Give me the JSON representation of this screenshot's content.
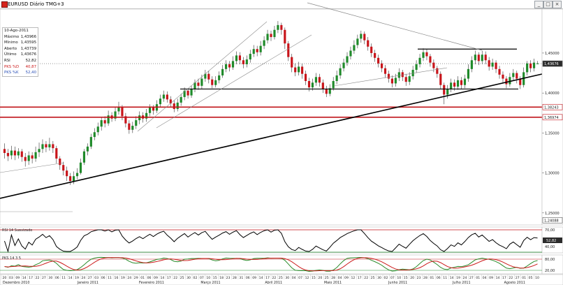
{
  "window": {
    "title": "EURUSD Diário TMG+3",
    "buttons": [
      "_",
      "□",
      "×"
    ]
  },
  "info": {
    "date": "10-Ago-2011",
    "rows": [
      {
        "label": "Máximo",
        "value": "1,43966",
        "color": "#111111"
      },
      {
        "label": "Mínimo",
        "value": "1,43595",
        "color": "#111111"
      },
      {
        "label": "Aberto",
        "value": "1,43739",
        "color": "#111111"
      },
      {
        "label": "Último",
        "value": "1,43676",
        "color": "#111111"
      },
      {
        "label": "RSI",
        "value": "52,82",
        "color": "#111111"
      },
      {
        "label": "PKS %D",
        "value": "40,87",
        "color": "#cc1b1b"
      },
      {
        "label": "PKS %K",
        "value": "52,40",
        "color": "#2a4fb5"
      }
    ]
  },
  "price_panel": {
    "axis_labels": [
      "1,45000",
      "1,40000",
      "1,35000",
      "1,30000",
      "1,25000"
    ],
    "badges": [
      {
        "text": "1,43676",
        "price": 1.43676,
        "style": "dark"
      },
      {
        "text": "1,38243",
        "price": 1.38243,
        "style": "red"
      },
      {
        "text": "1,36974",
        "price": 1.36974,
        "style": "red"
      },
      {
        "text": "1,24088",
        "price": 1.24088,
        "style": "plain"
      }
    ],
    "last_price": 1.43676,
    "resistance_line": 1.455,
    "neckline": 1.405,
    "support_zone_top": 1.38243,
    "support_zone_bottom": 1.36974
  },
  "rsi_panel": {
    "label": "RSI 14 Suavizado",
    "axis_labels": [
      "70,00",
      "40,00"
    ],
    "badge": "52,82"
  },
  "pks_panel": {
    "label": "PKS 14 3 5",
    "axis_labels": [
      "80,00",
      "20,00"
    ],
    "k_color": "#2a8a2a",
    "d_color": "#cc1b1b"
  },
  "timeline": {
    "day_labels": [
      "20",
      "03",
      "09",
      "14",
      "17",
      "22",
      "27",
      "30",
      "06",
      "11",
      "14",
      "19",
      "24",
      "27",
      "03",
      "06",
      "11",
      "16",
      "19",
      "24",
      "29",
      "01",
      "06",
      "09",
      "14",
      "17",
      "22",
      "25",
      "30",
      "02",
      "07",
      "10",
      "15",
      "18",
      "23",
      "28",
      "31",
      "06",
      "09",
      "14",
      "17",
      "22",
      "25",
      "30",
      "04",
      "07",
      "12",
      "15",
      "20",
      "25",
      "28",
      "04",
      "09",
      "12",
      "17",
      "22",
      "25",
      "30",
      "02",
      "07",
      "10",
      "15",
      "20",
      "23",
      "28",
      "01",
      "06",
      "11",
      "14",
      "19",
      "24",
      "27",
      "01",
      "04",
      "09",
      "14",
      "17",
      "22",
      "27",
      "01",
      "05",
      "10"
    ],
    "month_labels": [
      {
        "text": "Dezembro 2010",
        "pos": 0.0
      },
      {
        "text": "Janeiro 2011",
        "pos": 0.145
      },
      {
        "text": "Fevereiro 2011",
        "pos": 0.265
      },
      {
        "text": "Março 2011",
        "pos": 0.385
      },
      {
        "text": "Abril 2011",
        "pos": 0.51
      },
      {
        "text": "Maio 2011",
        "pos": 0.625
      },
      {
        "text": "Junho 2011",
        "pos": 0.75
      },
      {
        "text": "Julho 2011",
        "pos": 0.875
      },
      {
        "text": "Agosto 2011",
        "pos": 0.975
      }
    ]
  },
  "chart_data": {
    "type": "candlestick",
    "title": "EURUSD Diário TMG+3",
    "ylim": [
      1.235,
      1.505
    ],
    "y_ticks": [
      1.25,
      1.3,
      1.35,
      1.4,
      1.45
    ],
    "candles": [
      {
        "o": 1.33,
        "c": 1.325,
        "h": 1.337,
        "l": 1.318
      },
      {
        "o": 1.325,
        "c": 1.321,
        "h": 1.33,
        "l": 1.315
      },
      {
        "o": 1.322,
        "c": 1.328,
        "h": 1.334,
        "l": 1.317
      },
      {
        "o": 1.328,
        "c": 1.322,
        "h": 1.333,
        "l": 1.316
      },
      {
        "o": 1.322,
        "c": 1.327,
        "h": 1.331,
        "l": 1.318
      },
      {
        "o": 1.327,
        "c": 1.32,
        "h": 1.33,
        "l": 1.314
      },
      {
        "o": 1.32,
        "c": 1.315,
        "h": 1.325,
        "l": 1.308
      },
      {
        "o": 1.315,
        "c": 1.322,
        "h": 1.327,
        "l": 1.31
      },
      {
        "o": 1.322,
        "c": 1.318,
        "h": 1.326,
        "l": 1.312
      },
      {
        "o": 1.318,
        "c": 1.326,
        "h": 1.333,
        "l": 1.314
      },
      {
        "o": 1.326,
        "c": 1.33,
        "h": 1.338,
        "l": 1.32
      },
      {
        "o": 1.33,
        "c": 1.336,
        "h": 1.342,
        "l": 1.325
      },
      {
        "o": 1.336,
        "c": 1.332,
        "h": 1.34,
        "l": 1.326
      },
      {
        "o": 1.332,
        "c": 1.336,
        "h": 1.344,
        "l": 1.328
      },
      {
        "o": 1.336,
        "c": 1.331,
        "h": 1.34,
        "l": 1.325
      },
      {
        "o": 1.331,
        "c": 1.318,
        "h": 1.334,
        "l": 1.312
      },
      {
        "o": 1.318,
        "c": 1.31,
        "h": 1.321,
        "l": 1.304
      },
      {
        "o": 1.31,
        "c": 1.303,
        "h": 1.314,
        "l": 1.297
      },
      {
        "o": 1.303,
        "c": 1.296,
        "h": 1.308,
        "l": 1.29
      },
      {
        "o": 1.296,
        "c": 1.29,
        "h": 1.3,
        "l": 1.285
      },
      {
        "o": 1.29,
        "c": 1.296,
        "h": 1.302,
        "l": 1.286
      },
      {
        "o": 1.296,
        "c": 1.3,
        "h": 1.306,
        "l": 1.292
      },
      {
        "o": 1.3,
        "c": 1.313,
        "h": 1.318,
        "l": 1.298
      },
      {
        "o": 1.313,
        "c": 1.327,
        "h": 1.33,
        "l": 1.31
      },
      {
        "o": 1.327,
        "c": 1.333,
        "h": 1.337,
        "l": 1.322
      },
      {
        "o": 1.333,
        "c": 1.345,
        "h": 1.349,
        "l": 1.33
      },
      {
        "o": 1.345,
        "c": 1.351,
        "h": 1.356,
        "l": 1.341
      },
      {
        "o": 1.351,
        "c": 1.358,
        "h": 1.363,
        "l": 1.347
      },
      {
        "o": 1.358,
        "c": 1.366,
        "h": 1.37,
        "l": 1.353
      },
      {
        "o": 1.366,
        "c": 1.362,
        "h": 1.371,
        "l": 1.357
      },
      {
        "o": 1.362,
        "c": 1.372,
        "h": 1.378,
        "l": 1.359
      },
      {
        "o": 1.372,
        "c": 1.368,
        "h": 1.376,
        "l": 1.364
      },
      {
        "o": 1.368,
        "c": 1.377,
        "h": 1.383,
        "l": 1.365
      },
      {
        "o": 1.377,
        "c": 1.383,
        "h": 1.389,
        "l": 1.373
      },
      {
        "o": 1.383,
        "c": 1.371,
        "h": 1.385,
        "l": 1.366
      },
      {
        "o": 1.371,
        "c": 1.362,
        "h": 1.375,
        "l": 1.357
      },
      {
        "o": 1.362,
        "c": 1.354,
        "h": 1.366,
        "l": 1.349
      },
      {
        "o": 1.354,
        "c": 1.359,
        "h": 1.364,
        "l": 1.35
      },
      {
        "o": 1.359,
        "c": 1.366,
        "h": 1.371,
        "l": 1.355
      },
      {
        "o": 1.366,
        "c": 1.372,
        "h": 1.377,
        "l": 1.361
      },
      {
        "o": 1.372,
        "c": 1.368,
        "h": 1.376,
        "l": 1.363
      },
      {
        "o": 1.368,
        "c": 1.375,
        "h": 1.38,
        "l": 1.364
      },
      {
        "o": 1.375,
        "c": 1.382,
        "h": 1.386,
        "l": 1.371
      },
      {
        "o": 1.382,
        "c": 1.378,
        "h": 1.385,
        "l": 1.373
      },
      {
        "o": 1.378,
        "c": 1.386,
        "h": 1.391,
        "l": 1.375
      },
      {
        "o": 1.386,
        "c": 1.393,
        "h": 1.398,
        "l": 1.382
      },
      {
        "o": 1.393,
        "c": 1.398,
        "h": 1.403,
        "l": 1.389
      },
      {
        "o": 1.398,
        "c": 1.392,
        "h": 1.402,
        "l": 1.388
      },
      {
        "o": 1.392,
        "c": 1.387,
        "h": 1.396,
        "l": 1.383
      },
      {
        "o": 1.387,
        "c": 1.38,
        "h": 1.391,
        "l": 1.376
      },
      {
        "o": 1.38,
        "c": 1.388,
        "h": 1.393,
        "l": 1.377
      },
      {
        "o": 1.388,
        "c": 1.395,
        "h": 1.399,
        "l": 1.384
      },
      {
        "o": 1.395,
        "c": 1.403,
        "h": 1.407,
        "l": 1.391
      },
      {
        "o": 1.403,
        "c": 1.397,
        "h": 1.406,
        "l": 1.393
      },
      {
        "o": 1.397,
        "c": 1.405,
        "h": 1.409,
        "l": 1.394
      },
      {
        "o": 1.405,
        "c": 1.413,
        "h": 1.417,
        "l": 1.401
      },
      {
        "o": 1.413,
        "c": 1.409,
        "h": 1.418,
        "l": 1.404
      },
      {
        "o": 1.409,
        "c": 1.418,
        "h": 1.423,
        "l": 1.405
      },
      {
        "o": 1.418,
        "c": 1.424,
        "h": 1.429,
        "l": 1.414
      },
      {
        "o": 1.424,
        "c": 1.417,
        "h": 1.428,
        "l": 1.412
      },
      {
        "o": 1.417,
        "c": 1.41,
        "h": 1.421,
        "l": 1.406
      },
      {
        "o": 1.41,
        "c": 1.416,
        "h": 1.421,
        "l": 1.407
      },
      {
        "o": 1.416,
        "c": 1.422,
        "h": 1.427,
        "l": 1.412
      },
      {
        "o": 1.422,
        "c": 1.43,
        "h": 1.435,
        "l": 1.419
      },
      {
        "o": 1.43,
        "c": 1.436,
        "h": 1.441,
        "l": 1.426
      },
      {
        "o": 1.436,
        "c": 1.432,
        "h": 1.44,
        "l": 1.427
      },
      {
        "o": 1.432,
        "c": 1.44,
        "h": 1.446,
        "l": 1.429
      },
      {
        "o": 1.44,
        "c": 1.447,
        "h": 1.452,
        "l": 1.436
      },
      {
        "o": 1.447,
        "c": 1.441,
        "h": 1.451,
        "l": 1.436
      },
      {
        "o": 1.441,
        "c": 1.436,
        "h": 1.445,
        "l": 1.431
      },
      {
        "o": 1.436,
        "c": 1.442,
        "h": 1.447,
        "l": 1.432
      },
      {
        "o": 1.442,
        "c": 1.449,
        "h": 1.454,
        "l": 1.438
      },
      {
        "o": 1.449,
        "c": 1.455,
        "h": 1.46,
        "l": 1.445
      },
      {
        "o": 1.455,
        "c": 1.451,
        "h": 1.459,
        "l": 1.446
      },
      {
        "o": 1.451,
        "c": 1.459,
        "h": 1.465,
        "l": 1.447
      },
      {
        "o": 1.459,
        "c": 1.466,
        "h": 1.471,
        "l": 1.455
      },
      {
        "o": 1.466,
        "c": 1.474,
        "h": 1.479,
        "l": 1.462
      },
      {
        "o": 1.474,
        "c": 1.47,
        "h": 1.478,
        "l": 1.465
      },
      {
        "o": 1.47,
        "c": 1.479,
        "h": 1.484,
        "l": 1.467
      },
      {
        "o": 1.479,
        "c": 1.485,
        "h": 1.49,
        "l": 1.475
      },
      {
        "o": 1.485,
        "c": 1.479,
        "h": 1.488,
        "l": 1.473
      },
      {
        "o": 1.479,
        "c": 1.462,
        "h": 1.482,
        "l": 1.455
      },
      {
        "o": 1.462,
        "c": 1.445,
        "h": 1.465,
        "l": 1.44
      },
      {
        "o": 1.445,
        "c": 1.432,
        "h": 1.449,
        "l": 1.426
      },
      {
        "o": 1.432,
        "c": 1.426,
        "h": 1.437,
        "l": 1.421
      },
      {
        "o": 1.426,
        "c": 1.433,
        "h": 1.439,
        "l": 1.422
      },
      {
        "o": 1.433,
        "c": 1.424,
        "h": 1.437,
        "l": 1.418
      },
      {
        "o": 1.424,
        "c": 1.415,
        "h": 1.428,
        "l": 1.41
      },
      {
        "o": 1.415,
        "c": 1.407,
        "h": 1.419,
        "l": 1.402
      },
      {
        "o": 1.407,
        "c": 1.413,
        "h": 1.418,
        "l": 1.403
      },
      {
        "o": 1.413,
        "c": 1.42,
        "h": 1.425,
        "l": 1.409
      },
      {
        "o": 1.42,
        "c": 1.413,
        "h": 1.424,
        "l": 1.408
      },
      {
        "o": 1.413,
        "c": 1.405,
        "h": 1.417,
        "l": 1.4
      },
      {
        "o": 1.405,
        "c": 1.399,
        "h": 1.409,
        "l": 1.395
      },
      {
        "o": 1.399,
        "c": 1.406,
        "h": 1.411,
        "l": 1.396
      },
      {
        "o": 1.406,
        "c": 1.415,
        "h": 1.42,
        "l": 1.403
      },
      {
        "o": 1.415,
        "c": 1.422,
        "h": 1.428,
        "l": 1.411
      },
      {
        "o": 1.422,
        "c": 1.431,
        "h": 1.436,
        "l": 1.418
      },
      {
        "o": 1.431,
        "c": 1.438,
        "h": 1.443,
        "l": 1.427
      },
      {
        "o": 1.438,
        "c": 1.446,
        "h": 1.451,
        "l": 1.434
      },
      {
        "o": 1.446,
        "c": 1.453,
        "h": 1.458,
        "l": 1.442
      },
      {
        "o": 1.453,
        "c": 1.46,
        "h": 1.466,
        "l": 1.449
      },
      {
        "o": 1.46,
        "c": 1.468,
        "h": 1.473,
        "l": 1.456
      },
      {
        "o": 1.468,
        "c": 1.474,
        "h": 1.478,
        "l": 1.463
      },
      {
        "o": 1.474,
        "c": 1.466,
        "h": 1.477,
        "l": 1.461
      },
      {
        "o": 1.466,
        "c": 1.458,
        "h": 1.47,
        "l": 1.453
      },
      {
        "o": 1.458,
        "c": 1.45,
        "h": 1.462,
        "l": 1.445
      },
      {
        "o": 1.45,
        "c": 1.444,
        "h": 1.454,
        "l": 1.439
      },
      {
        "o": 1.444,
        "c": 1.437,
        "h": 1.448,
        "l": 1.432
      },
      {
        "o": 1.437,
        "c": 1.431,
        "h": 1.441,
        "l": 1.426
      },
      {
        "o": 1.431,
        "c": 1.424,
        "h": 1.435,
        "l": 1.419
      },
      {
        "o": 1.424,
        "c": 1.418,
        "h": 1.428,
        "l": 1.413
      },
      {
        "o": 1.418,
        "c": 1.412,
        "h": 1.422,
        "l": 1.407
      },
      {
        "o": 1.412,
        "c": 1.419,
        "h": 1.424,
        "l": 1.408
      },
      {
        "o": 1.419,
        "c": 1.426,
        "h": 1.431,
        "l": 1.415
      },
      {
        "o": 1.426,
        "c": 1.42,
        "h": 1.429,
        "l": 1.415
      },
      {
        "o": 1.42,
        "c": 1.414,
        "h": 1.424,
        "l": 1.409
      },
      {
        "o": 1.414,
        "c": 1.421,
        "h": 1.426,
        "l": 1.41
      },
      {
        "o": 1.421,
        "c": 1.429,
        "h": 1.434,
        "l": 1.417
      },
      {
        "o": 1.429,
        "c": 1.436,
        "h": 1.441,
        "l": 1.425
      },
      {
        "o": 1.436,
        "c": 1.444,
        "h": 1.449,
        "l": 1.432
      },
      {
        "o": 1.444,
        "c": 1.451,
        "h": 1.456,
        "l": 1.44
      },
      {
        "o": 1.451,
        "c": 1.446,
        "h": 1.455,
        "l": 1.441
      },
      {
        "o": 1.446,
        "c": 1.438,
        "h": 1.449,
        "l": 1.433
      },
      {
        "o": 1.438,
        "c": 1.431,
        "h": 1.442,
        "l": 1.426
      },
      {
        "o": 1.431,
        "c": 1.424,
        "h": 1.434,
        "l": 1.419
      },
      {
        "o": 1.424,
        "c": 1.41,
        "h": 1.427,
        "l": 1.405
      },
      {
        "o": 1.41,
        "c": 1.398,
        "h": 1.413,
        "l": 1.386
      },
      {
        "o": 1.398,
        "c": 1.405,
        "h": 1.41,
        "l": 1.393
      },
      {
        "o": 1.405,
        "c": 1.413,
        "h": 1.418,
        "l": 1.401
      },
      {
        "o": 1.413,
        "c": 1.408,
        "h": 1.417,
        "l": 1.403
      },
      {
        "o": 1.408,
        "c": 1.416,
        "h": 1.421,
        "l": 1.404
      },
      {
        "o": 1.416,
        "c": 1.41,
        "h": 1.42,
        "l": 1.405
      },
      {
        "o": 1.41,
        "c": 1.418,
        "h": 1.423,
        "l": 1.406
      },
      {
        "o": 1.418,
        "c": 1.43,
        "h": 1.436,
        "l": 1.414
      },
      {
        "o": 1.43,
        "c": 1.441,
        "h": 1.446,
        "l": 1.426
      },
      {
        "o": 1.441,
        "c": 1.448,
        "h": 1.453,
        "l": 1.436
      },
      {
        "o": 1.448,
        "c": 1.44,
        "h": 1.451,
        "l": 1.435
      },
      {
        "o": 1.44,
        "c": 1.448,
        "h": 1.453,
        "l": 1.436
      },
      {
        "o": 1.448,
        "c": 1.441,
        "h": 1.452,
        "l": 1.436
      },
      {
        "o": 1.441,
        "c": 1.433,
        "h": 1.445,
        "l": 1.428
      },
      {
        "o": 1.433,
        "c": 1.438,
        "h": 1.443,
        "l": 1.429
      },
      {
        "o": 1.438,
        "c": 1.43,
        "h": 1.441,
        "l": 1.425
      },
      {
        "o": 1.43,
        "c": 1.423,
        "h": 1.434,
        "l": 1.418
      },
      {
        "o": 1.423,
        "c": 1.418,
        "h": 1.427,
        "l": 1.413
      },
      {
        "o": 1.418,
        "c": 1.411,
        "h": 1.421,
        "l": 1.406
      },
      {
        "o": 1.411,
        "c": 1.42,
        "h": 1.425,
        "l": 1.408
      },
      {
        "o": 1.42,
        "c": 1.425,
        "h": 1.43,
        "l": 1.416
      },
      {
        "o": 1.425,
        "c": 1.418,
        "h": 1.428,
        "l": 1.412
      },
      {
        "o": 1.418,
        "c": 1.41,
        "h": 1.421,
        "l": 1.405
      },
      {
        "o": 1.41,
        "c": 1.426,
        "h": 1.432,
        "l": 1.407
      },
      {
        "o": 1.426,
        "c": 1.437,
        "h": 1.44,
        "l": 1.422
      },
      {
        "o": 1.437,
        "c": 1.431,
        "h": 1.441,
        "l": 1.426
      },
      {
        "o": 1.431,
        "c": 1.438,
        "h": 1.443,
        "l": 1.427
      },
      {
        "o": 1.437,
        "c": 1.437,
        "h": 1.44,
        "l": 1.436
      }
    ],
    "levels": {
      "resistance": 1.455,
      "neckline": 1.405,
      "support_top": 1.38243,
      "support_bottom": 1.36974
    },
    "last": 1.43676
  }
}
